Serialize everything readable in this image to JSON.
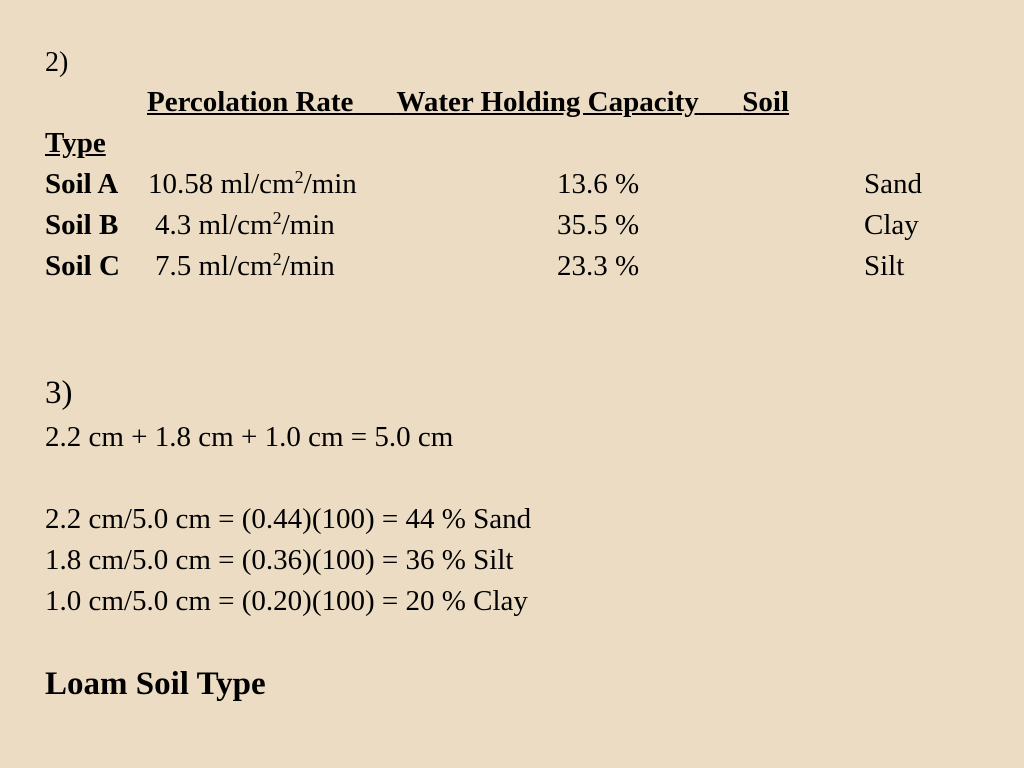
{
  "section2": {
    "number": "2)",
    "header": {
      "percolation": "Percolation Rate",
      "gap1": "      ",
      "water": "Water Holding Capacity",
      "gap2": "      ",
      "soil": "Soil",
      "type": "Type"
    },
    "rows": [
      {
        "label": "Soil A",
        "rate_value": "10.58 ml/cm",
        "rate_exp": "2",
        "rate_unit": "/min",
        "capacity": "13.6 %",
        "soil_type": "Sand"
      },
      {
        "label": "Soil B",
        "rate_value": "4.3 ml/cm",
        "rate_exp": "2",
        "rate_unit": "/min",
        "capacity": "35.5 %",
        "soil_type": "Clay"
      },
      {
        "label": "Soil C",
        "rate_value": "7.5 ml/cm",
        "rate_exp": "2",
        "rate_unit": "/min",
        "capacity": "23.3 %",
        "soil_type": "Silt"
      }
    ]
  },
  "section3": {
    "number": "3)",
    "sum": "2.2 cm + 1.8 cm + 1.0 cm = 5.0 cm",
    "lines": [
      "2.2 cm/5.0 cm = (0.44)(100) = 44 % Sand",
      "1.8 cm/5.0 cm = (0.36)(100) = 36 % Silt",
      "1.0 cm/5.0 cm = (0.20)(100) = 20 % Clay"
    ],
    "conclusion": "Loam Soil Type"
  }
}
